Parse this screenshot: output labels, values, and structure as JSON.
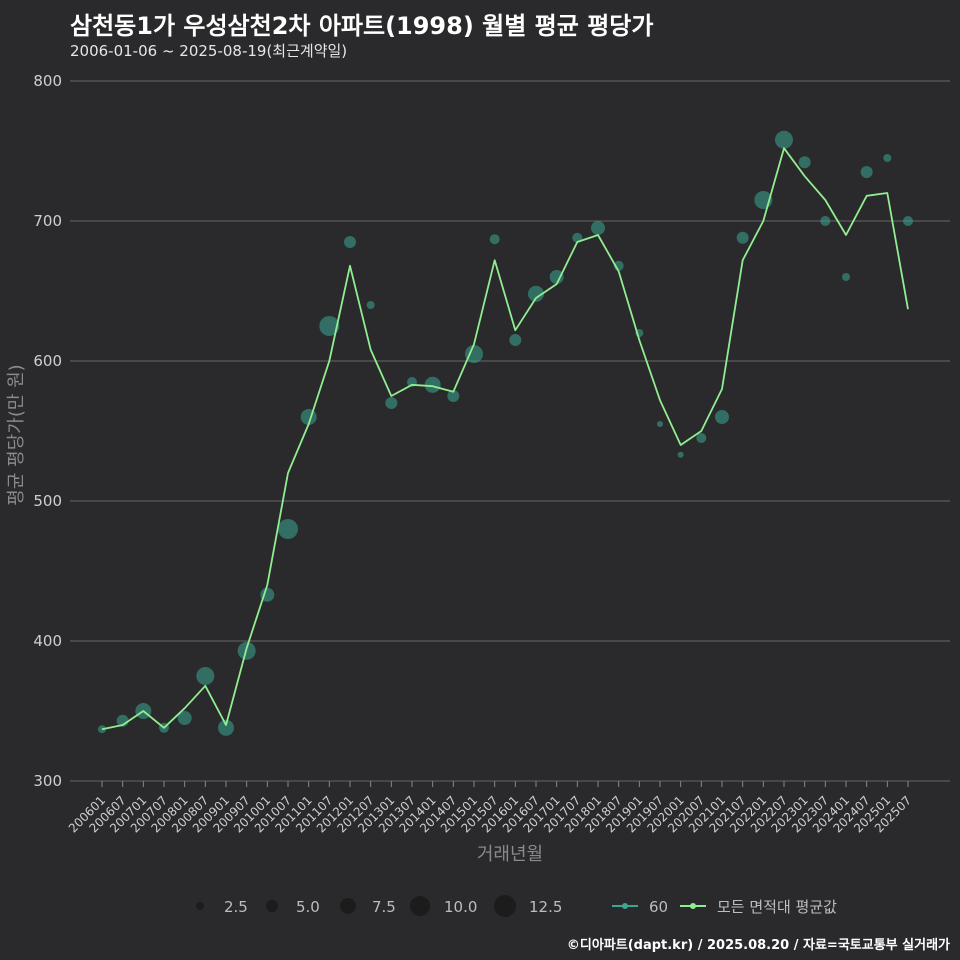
{
  "title": "삼천동1가 우성삼천2차 아파트(1998) 월별 평균 평당가",
  "subtitle": "2006-01-06 ~ 2025-08-19(최근계약일)",
  "credit": "©디아파트(dapt.kr) / 2025.08.20 / 자료=국토교통부 실거래가",
  "colors": {
    "background": "#2a2a2c",
    "grid": "#5a5a5a",
    "avg_line": "#90ee90",
    "bubble": "#3aa694"
  },
  "chart_data": {
    "type": "line",
    "xlabel": "거래년월",
    "ylabel": "평균 평당가(만 원)",
    "ylim": [
      290,
      815
    ],
    "yticks": [
      300,
      400,
      500,
      600,
      700,
      800
    ],
    "xticks": [
      "200601",
      "200607",
      "200701",
      "200707",
      "200801",
      "200807",
      "200901",
      "200907",
      "201001",
      "201007",
      "201101",
      "201107",
      "201201",
      "201207",
      "201301",
      "201307",
      "201401",
      "201407",
      "201501",
      "201507",
      "201601",
      "201607",
      "201701",
      "201707",
      "201801",
      "201807",
      "201901",
      "201907",
      "202001",
      "202007",
      "202101",
      "202107",
      "202201",
      "202207",
      "202301",
      "202307",
      "202401",
      "202407",
      "202501",
      "202507"
    ],
    "grid": "horizontal",
    "legend": {
      "position": "bottom",
      "size_title": "",
      "sizes": [
        2.5,
        5.0,
        7.5,
        10.0,
        12.5
      ],
      "series_labels": [
        "60",
        "모든 면적대 평균값"
      ]
    },
    "series": [
      {
        "name": "모든 면적대 평균값",
        "type": "line",
        "points": [
          [
            "200601",
            337
          ],
          [
            "200607",
            340
          ],
          [
            "200701",
            350
          ],
          [
            "200707",
            338
          ],
          [
            "200801",
            352
          ],
          [
            "200807",
            368
          ],
          [
            "200901",
            340
          ],
          [
            "200907",
            395
          ],
          [
            "201001",
            440
          ],
          [
            "201007",
            520
          ],
          [
            "201101",
            555
          ],
          [
            "201107",
            600
          ],
          [
            "201201",
            668
          ],
          [
            "201207",
            608
          ],
          [
            "201301",
            575
          ],
          [
            "201307",
            583
          ],
          [
            "201401",
            582
          ],
          [
            "201407",
            578
          ],
          [
            "201501",
            612
          ],
          [
            "201507",
            672
          ],
          [
            "201601",
            622
          ],
          [
            "201607",
            645
          ],
          [
            "201701",
            655
          ],
          [
            "201707",
            685
          ],
          [
            "201801",
            690
          ],
          [
            "201807",
            664
          ],
          [
            "201901",
            615
          ],
          [
            "201907",
            572
          ],
          [
            "202001",
            540
          ],
          [
            "202007",
            550
          ],
          [
            "202101",
            580
          ],
          [
            "202107",
            672
          ],
          [
            "202201",
            700
          ],
          [
            "202207",
            752
          ],
          [
            "202301",
            732
          ],
          [
            "202307",
            715
          ],
          [
            "202401",
            690
          ],
          [
            "202407",
            718
          ],
          [
            "202501",
            720
          ],
          [
            "202507",
            637
          ]
        ]
      },
      {
        "name": "60",
        "type": "scatter",
        "points": [
          [
            "200601",
            337,
            4
          ],
          [
            "200607",
            343,
            6
          ],
          [
            "200701",
            350,
            8
          ],
          [
            "200707",
            338,
            5
          ],
          [
            "200801",
            345,
            7
          ],
          [
            "200807",
            375,
            9
          ],
          [
            "200901",
            338,
            8
          ],
          [
            "200907",
            393,
            9
          ],
          [
            "201001",
            433,
            7
          ],
          [
            "201007",
            480,
            10
          ],
          [
            "201101",
            560,
            8
          ],
          [
            "201107",
            625,
            10
          ],
          [
            "201201",
            685,
            6
          ],
          [
            "201207",
            640,
            4
          ],
          [
            "201301",
            570,
            6
          ],
          [
            "201307",
            585,
            5
          ],
          [
            "201401",
            583,
            8
          ],
          [
            "201407",
            575,
            6
          ],
          [
            "201501",
            605,
            9
          ],
          [
            "201507",
            687,
            5
          ],
          [
            "201601",
            615,
            6
          ],
          [
            "201607",
            648,
            8
          ],
          [
            "201701",
            660,
            7
          ],
          [
            "201707",
            688,
            5
          ],
          [
            "201801",
            695,
            7
          ],
          [
            "201807",
            668,
            5
          ],
          [
            "201901",
            620,
            4
          ],
          [
            "201907",
            555,
            3
          ],
          [
            "202001",
            533,
            3
          ],
          [
            "202007",
            545,
            5
          ],
          [
            "202101",
            560,
            7
          ],
          [
            "202107",
            688,
            6
          ],
          [
            "202201",
            715,
            9
          ],
          [
            "202207",
            758,
            9
          ],
          [
            "202301",
            742,
            6
          ],
          [
            "202307",
            700,
            5
          ],
          [
            "202401",
            660,
            4
          ],
          [
            "202407",
            735,
            6
          ],
          [
            "202501",
            745,
            4
          ],
          [
            "202507",
            700,
            5
          ]
        ]
      }
    ]
  }
}
